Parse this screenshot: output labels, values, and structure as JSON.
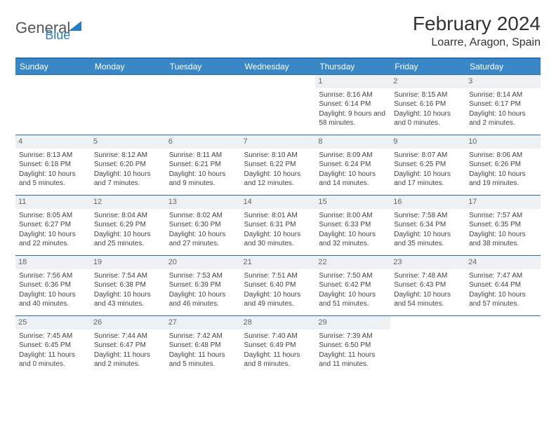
{
  "logo": {
    "text1": "General",
    "text2": "Blue"
  },
  "title": "February 2024",
  "location": "Loarre, Aragon, Spain",
  "weekdays": [
    "Sunday",
    "Monday",
    "Tuesday",
    "Wednesday",
    "Thursday",
    "Friday",
    "Saturday"
  ],
  "colors": {
    "header_bg": "#3a87c8",
    "header_border": "#2b6fa8",
    "daynum_bg": "#eef1f3",
    "brand_blue": "#2b7cc0"
  },
  "weeks": [
    [
      null,
      null,
      null,
      null,
      {
        "n": "1",
        "sr": "8:16 AM",
        "ss": "6:14 PM",
        "dl": "9 hours and 58 minutes."
      },
      {
        "n": "2",
        "sr": "8:15 AM",
        "ss": "6:16 PM",
        "dl": "10 hours and 0 minutes."
      },
      {
        "n": "3",
        "sr": "8:14 AM",
        "ss": "6:17 PM",
        "dl": "10 hours and 2 minutes."
      }
    ],
    [
      {
        "n": "4",
        "sr": "8:13 AM",
        "ss": "6:18 PM",
        "dl": "10 hours and 5 minutes."
      },
      {
        "n": "5",
        "sr": "8:12 AM",
        "ss": "6:20 PM",
        "dl": "10 hours and 7 minutes."
      },
      {
        "n": "6",
        "sr": "8:11 AM",
        "ss": "6:21 PM",
        "dl": "10 hours and 9 minutes."
      },
      {
        "n": "7",
        "sr": "8:10 AM",
        "ss": "6:22 PM",
        "dl": "10 hours and 12 minutes."
      },
      {
        "n": "8",
        "sr": "8:09 AM",
        "ss": "6:24 PM",
        "dl": "10 hours and 14 minutes."
      },
      {
        "n": "9",
        "sr": "8:07 AM",
        "ss": "6:25 PM",
        "dl": "10 hours and 17 minutes."
      },
      {
        "n": "10",
        "sr": "8:06 AM",
        "ss": "6:26 PM",
        "dl": "10 hours and 19 minutes."
      }
    ],
    [
      {
        "n": "11",
        "sr": "8:05 AM",
        "ss": "6:27 PM",
        "dl": "10 hours and 22 minutes."
      },
      {
        "n": "12",
        "sr": "8:04 AM",
        "ss": "6:29 PM",
        "dl": "10 hours and 25 minutes."
      },
      {
        "n": "13",
        "sr": "8:02 AM",
        "ss": "6:30 PM",
        "dl": "10 hours and 27 minutes."
      },
      {
        "n": "14",
        "sr": "8:01 AM",
        "ss": "6:31 PM",
        "dl": "10 hours and 30 minutes."
      },
      {
        "n": "15",
        "sr": "8:00 AM",
        "ss": "6:33 PM",
        "dl": "10 hours and 32 minutes."
      },
      {
        "n": "16",
        "sr": "7:58 AM",
        "ss": "6:34 PM",
        "dl": "10 hours and 35 minutes."
      },
      {
        "n": "17",
        "sr": "7:57 AM",
        "ss": "6:35 PM",
        "dl": "10 hours and 38 minutes."
      }
    ],
    [
      {
        "n": "18",
        "sr": "7:56 AM",
        "ss": "6:36 PM",
        "dl": "10 hours and 40 minutes."
      },
      {
        "n": "19",
        "sr": "7:54 AM",
        "ss": "6:38 PM",
        "dl": "10 hours and 43 minutes."
      },
      {
        "n": "20",
        "sr": "7:53 AM",
        "ss": "6:39 PM",
        "dl": "10 hours and 46 minutes."
      },
      {
        "n": "21",
        "sr": "7:51 AM",
        "ss": "6:40 PM",
        "dl": "10 hours and 49 minutes."
      },
      {
        "n": "22",
        "sr": "7:50 AM",
        "ss": "6:42 PM",
        "dl": "10 hours and 51 minutes."
      },
      {
        "n": "23",
        "sr": "7:48 AM",
        "ss": "6:43 PM",
        "dl": "10 hours and 54 minutes."
      },
      {
        "n": "24",
        "sr": "7:47 AM",
        "ss": "6:44 PM",
        "dl": "10 hours and 57 minutes."
      }
    ],
    [
      {
        "n": "25",
        "sr": "7:45 AM",
        "ss": "6:45 PM",
        "dl": "11 hours and 0 minutes."
      },
      {
        "n": "26",
        "sr": "7:44 AM",
        "ss": "6:47 PM",
        "dl": "11 hours and 2 minutes."
      },
      {
        "n": "27",
        "sr": "7:42 AM",
        "ss": "6:48 PM",
        "dl": "11 hours and 5 minutes."
      },
      {
        "n": "28",
        "sr": "7:40 AM",
        "ss": "6:49 PM",
        "dl": "11 hours and 8 minutes."
      },
      {
        "n": "29",
        "sr": "7:39 AM",
        "ss": "6:50 PM",
        "dl": "11 hours and 11 minutes."
      },
      null,
      null
    ]
  ],
  "labels": {
    "sunrise": "Sunrise:",
    "sunset": "Sunset:",
    "daylight": "Daylight:"
  }
}
